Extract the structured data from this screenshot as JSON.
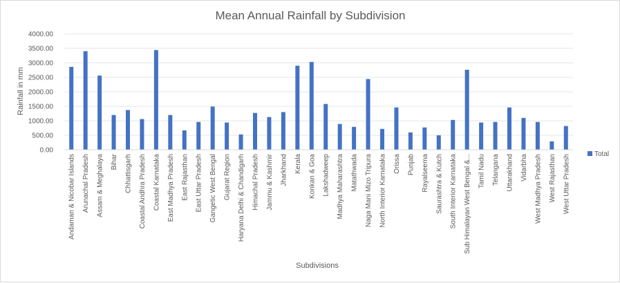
{
  "chart_data": {
    "type": "bar",
    "title": "Mean Annual Rainfall by Subdivision",
    "xlabel": "Subdivisions",
    "ylabel": "Rainfall in mm",
    "ylim": [
      0,
      4000
    ],
    "yticks": [
      "0.00",
      "500.00",
      "1000.00",
      "1500.00",
      "2000.00",
      "2500.00",
      "3000.00",
      "3500.00",
      "4000.00"
    ],
    "grid": true,
    "legend_position": "right",
    "bar_color": "#4472c4",
    "categories": [
      "Andaman & Nicobar Islands",
      "Arunachal Pradesh",
      "Assam & Meghalaya",
      "Bihar",
      "Chhattisgarh",
      "Coastal Andhra Pradesh",
      "Coastal Karnataka",
      "East Madhya Pradesh",
      "East Rajasthan",
      "East Uttar Pradesh",
      "Gangetic West Bengal",
      "Gujarat Region",
      "Haryana Delhi & Chandigarh",
      "Himachal Pradesh",
      "Jammu & Kashmir",
      "Jharkhand",
      "Kerala",
      "Konkan & Goa",
      "Lakshadweep",
      "Madhya Maharashtra",
      "Matathwada",
      "Naga Mani Mizo Tripura",
      "North Interior Karnataka",
      "Orissa",
      "Punjab",
      "Rayalseema",
      "Saurashtra & Kutch",
      "South Interior Karnataka",
      "Sub Himalayan West Bengal &...",
      "Tamil Nadu",
      "Telangana",
      "Uttarakhand",
      "Vidarbha",
      "West Madhya Pradesh",
      "West Rajasthan",
      "West Uttar Pradesh"
    ],
    "series": [
      {
        "name": "Total",
        "values": [
          2860,
          3400,
          2560,
          1200,
          1370,
          1060,
          3440,
          1200,
          670,
          960,
          1490,
          940,
          530,
          1270,
          1130,
          1300,
          2900,
          3030,
          1580,
          890,
          790,
          2440,
          720,
          1460,
          600,
          770,
          500,
          1030,
          2760,
          940,
          960,
          1460,
          1100,
          960,
          290,
          820
        ]
      }
    ]
  }
}
